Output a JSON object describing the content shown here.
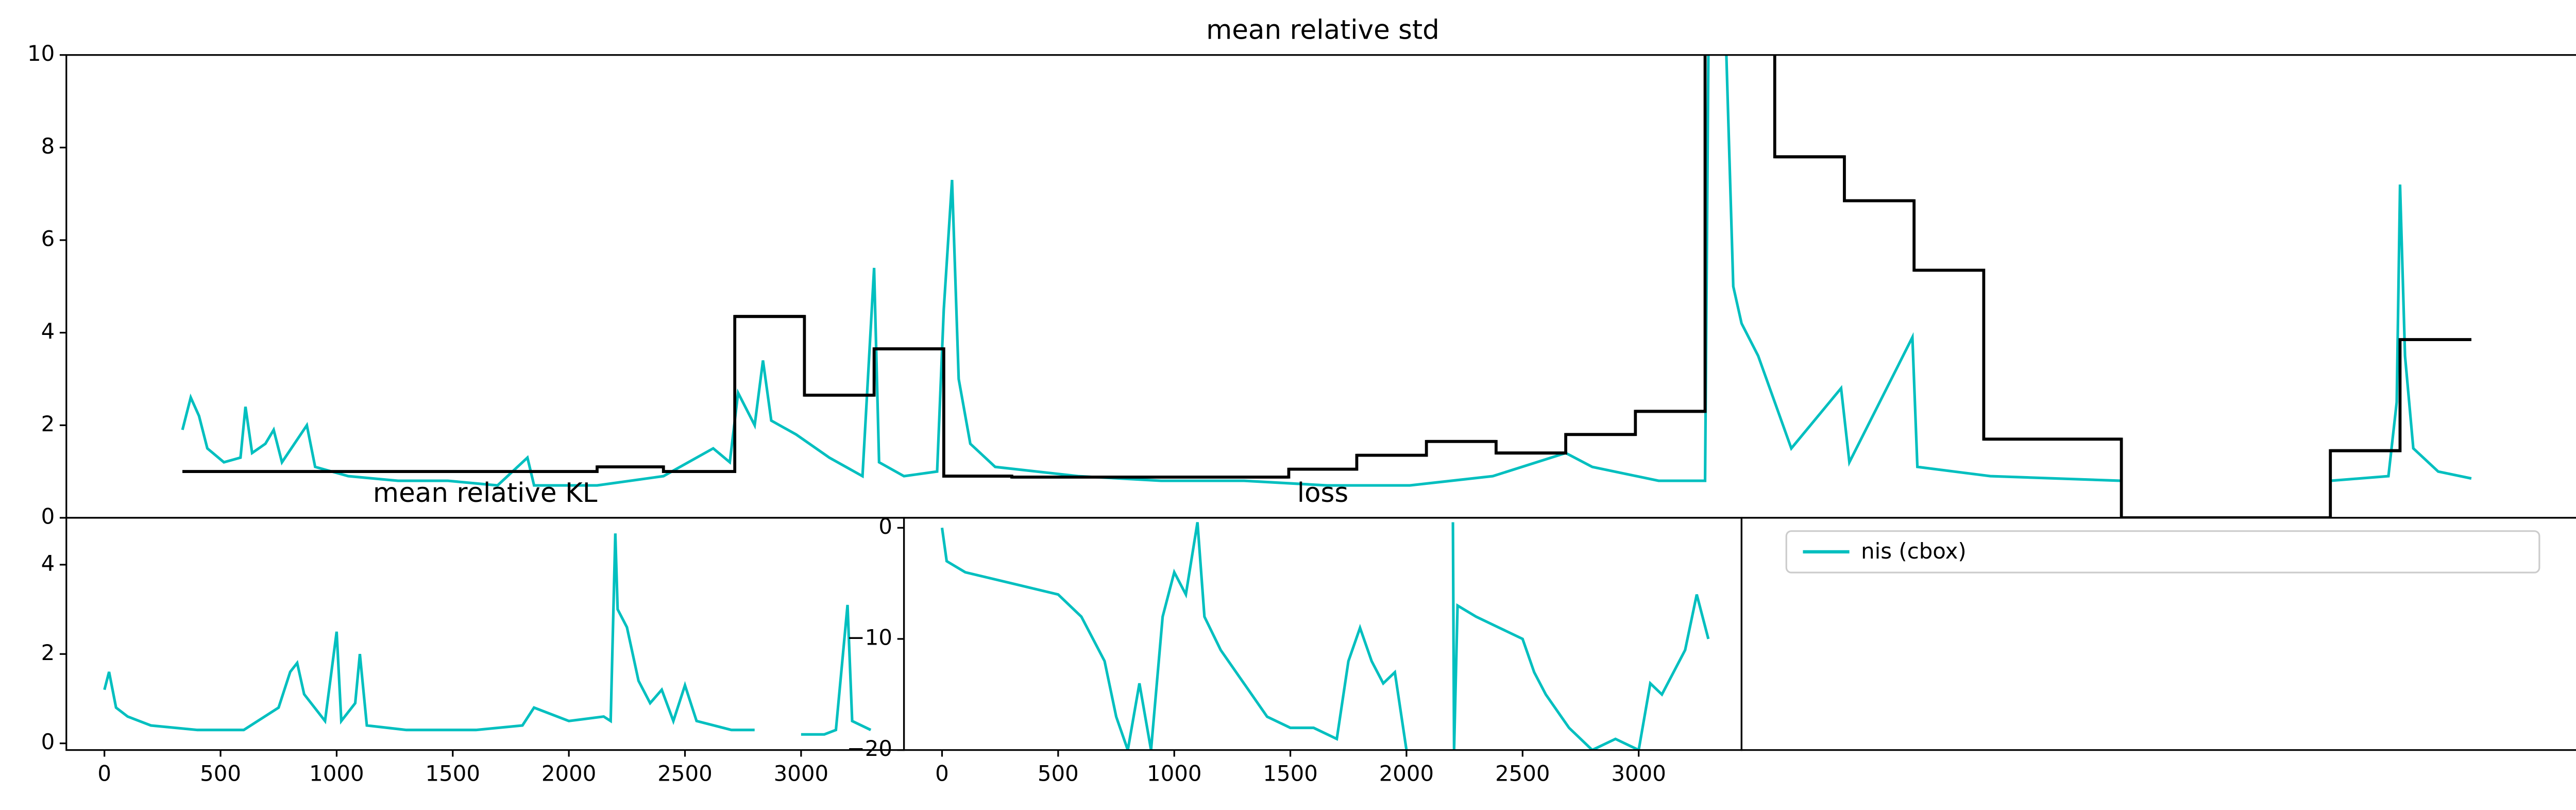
{
  "chart_data": [
    {
      "type": "line",
      "title": "mean relative std",
      "xlim": [
        40,
        1555
      ],
      "ylim": [
        0,
        10
      ],
      "yticks": [
        0,
        2,
        4,
        6,
        8,
        10
      ],
      "series": [
        {
          "name": "nis (cbox)",
          "color": "#00bfbf",
          "x": [
            110,
            115,
            120,
            125,
            135,
            145,
            148,
            152,
            160,
            165,
            170,
            185,
            190,
            210,
            240,
            270,
            300,
            318,
            322,
            360,
            400,
            430,
            440,
            445,
            455,
            460,
            465,
            480,
            500,
            520,
            527,
            530,
            545,
            565,
            569,
            574,
            578,
            585,
            600,
            650,
            700,
            750,
            800,
            850,
            900,
            944,
            960,
            1000,
            1028,
            1030,
            1040,
            1045,
            1050,
            1060,
            1070,
            1080,
            1110,
            1115,
            1153,
            1156,
            1200,
            1279,
            1300,
            1405,
            1440,
            1445,
            1447,
            1450,
            1455,
            1470,
            1490
          ],
          "values": [
            1.9,
            2.6,
            2.2,
            1.5,
            1.2,
            1.3,
            2.4,
            1.4,
            1.6,
            1.9,
            1.2,
            2.0,
            1.1,
            0.9,
            0.8,
            0.8,
            0.7,
            1.3,
            0.7,
            0.7,
            0.9,
            1.5,
            1.2,
            2.7,
            2.0,
            3.4,
            2.1,
            1.8,
            1.3,
            0.9,
            5.4,
            1.2,
            0.9,
            1.0,
            4.5,
            7.3,
            3.0,
            1.6,
            1.1,
            0.9,
            0.8,
            0.8,
            0.7,
            0.7,
            0.9,
            1.4,
            1.1,
            0.8,
            0.8,
            10,
            11,
            5.0,
            4.2,
            3.5,
            2.5,
            1.5,
            2.8,
            1.2,
            3.9,
            1.1,
            0.9,
            0.8,
            null,
            0.8,
            0.9,
            2.5,
            7.2,
            3.5,
            1.5,
            1.0,
            0.85
          ]
        },
        {
          "color": "#000000",
          "drawstyle": "steps-post",
          "x": [
            110,
            360,
            400,
            443,
            485,
            527,
            569,
            610,
            777,
            818,
            860,
            902,
            944,
            986,
            1028,
            1070,
            1112,
            1154,
            1196,
            1279,
            1405,
            1447,
            1490
          ],
          "values": [
            1.0,
            1.1,
            1.0,
            4.35,
            2.65,
            3.65,
            0.9,
            0.88,
            1.05,
            1.35,
            1.65,
            1.4,
            1.8,
            2.3,
            12,
            7.8,
            6.85,
            5.35,
            1.7,
            0,
            1.45,
            3.85,
            3.85
          ]
        }
      ]
    },
    {
      "type": "line",
      "title": "mean relative KL",
      "xlim": [
        -164,
        3443
      ],
      "xticks": [
        0,
        500,
        1000,
        1500,
        2000,
        2500,
        3000
      ],
      "ylim": [
        -0.15,
        5.05
      ],
      "yticks": [
        0,
        2,
        4
      ],
      "series": [
        {
          "color": "#00bfbf",
          "x": [
            0,
            20,
            50,
            100,
            200,
            400,
            600,
            750,
            800,
            830,
            860,
            950,
            1000,
            1020,
            1080,
            1100,
            1130,
            1300,
            1600,
            1800,
            1850,
            2000,
            2150,
            2180,
            2200,
            2210,
            2250,
            2300,
            2350,
            2400,
            2450,
            2500,
            2550,
            2700,
            2800,
            2900,
            3000,
            3100,
            3150,
            3200,
            3220,
            3300
          ],
          "values": [
            1.2,
            1.6,
            0.8,
            0.6,
            0.4,
            0.3,
            0.3,
            0.8,
            1.6,
            1.8,
            1.1,
            0.5,
            2.5,
            0.5,
            0.9,
            2.0,
            0.4,
            0.3,
            0.3,
            0.4,
            0.8,
            0.5,
            0.6,
            0.5,
            4.7,
            3.0,
            2.6,
            1.4,
            0.9,
            1.2,
            0.5,
            1.3,
            0.5,
            0.3,
            0.3,
            null,
            0.2,
            0.2,
            0.3,
            3.1,
            0.5,
            0.3
          ]
        }
      ]
    },
    {
      "type": "line",
      "title": "loss",
      "xlim": [
        -164,
        3443
      ],
      "xticks": [
        0,
        500,
        1000,
        1500,
        2000,
        2500,
        3000
      ],
      "ylim": [
        -20,
        0.9
      ],
      "yticks": [
        0,
        {
          "value": -10,
          "label": "−10"
        },
        {
          "value": -20,
          "label": "−20"
        }
      ],
      "series": [
        {
          "color": "#00bfbf",
          "x": [
            0,
            20,
            100,
            300,
            500,
            600,
            700,
            750,
            800,
            850,
            900,
            950,
            1000,
            1050,
            1100,
            1130,
            1200,
            1300,
            1400,
            1500,
            1600,
            1700,
            1750,
            1800,
            1850,
            1900,
            1950,
            2000,
            2100,
            2200,
            2205,
            2220,
            2300,
            2400,
            2500,
            2550,
            2600,
            2700,
            2800,
            2900,
            3000,
            3050,
            3100,
            3200,
            3250,
            3300
          ],
          "values": [
            0,
            -3,
            -4,
            -5,
            -6,
            -8,
            -12,
            -17,
            -20,
            -14,
            -20,
            -8,
            -4,
            -6,
            0.5,
            -8,
            -11,
            -14,
            -17,
            -18,
            -18,
            -19,
            -12,
            -9,
            -12,
            -14,
            -13,
            -20,
            null,
            0.5,
            -20,
            -7,
            -8,
            -9,
            -10,
            -13,
            -15,
            -18,
            -20,
            -19,
            -20,
            -14,
            -15,
            -11,
            -6,
            -10
          ]
        }
      ]
    }
  ]
}
